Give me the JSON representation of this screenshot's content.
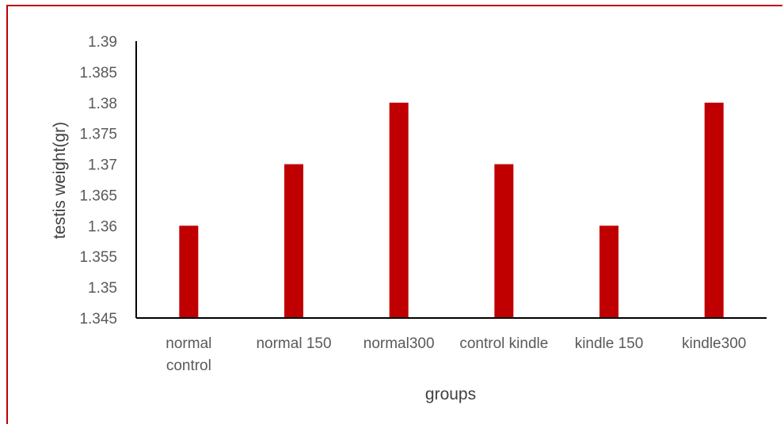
{
  "chart_data": {
    "type": "bar",
    "title": "",
    "xlabel": "groups",
    "ylabel": "testis weight(gr)",
    "categories": [
      [
        "normal",
        "control"
      ],
      [
        "normal 150"
      ],
      [
        "normal300"
      ],
      [
        "control kindle"
      ],
      [
        "kindle 150"
      ],
      [
        "kindle300"
      ]
    ],
    "values": [
      1.36,
      1.37,
      1.38,
      1.37,
      1.36,
      1.38
    ],
    "ylim": [
      1.345,
      1.39
    ],
    "yticks": [
      "1.345",
      "1.35",
      "1.355",
      "1.36",
      "1.365",
      "1.37",
      "1.375",
      "1.38",
      "1.385",
      "1.39"
    ],
    "grid": false,
    "legend": "none",
    "bar_color": "#c00000",
    "frame_color": "#c00000"
  }
}
